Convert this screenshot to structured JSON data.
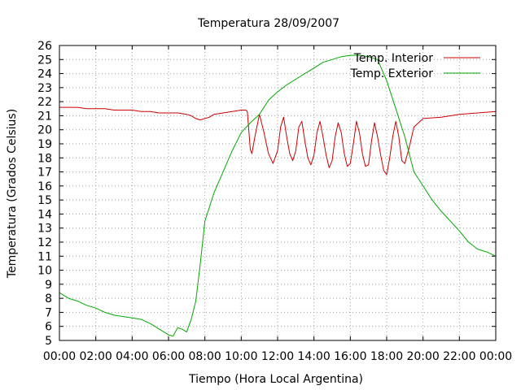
{
  "chart_data": {
    "type": "line",
    "title": "Temperatura 28/09/2007",
    "xlabel": "Tiempo (Hora Local Argentina)",
    "ylabel": "Temperatura (Grados Celsius)",
    "xlim": [
      "00:00",
      "24:00"
    ],
    "ylim": [
      5,
      26
    ],
    "x_ticks": [
      "00:00",
      "02:00",
      "04:00",
      "06:00",
      "08:00",
      "10:00",
      "12:00",
      "14:00",
      "16:00",
      "18:00",
      "20:00",
      "22:00",
      "00:00"
    ],
    "y_ticks": [
      5,
      6,
      7,
      8,
      9,
      10,
      11,
      12,
      13,
      14,
      15,
      16,
      17,
      18,
      19,
      20,
      21,
      22,
      23,
      24,
      25,
      26
    ],
    "grid": true,
    "legend_position": "top-right",
    "series": [
      {
        "name": "Temp. Interior",
        "color": "#cc0000",
        "x": [
          "00:00",
          "00:30",
          "01:00",
          "01:30",
          "02:00",
          "02:30",
          "03:00",
          "03:30",
          "04:00",
          "04:30",
          "05:00",
          "05:30",
          "06:00",
          "06:30",
          "07:00",
          "07:15",
          "07:30",
          "07:45",
          "08:00",
          "08:15",
          "08:30",
          "09:00",
          "09:30",
          "10:00",
          "10:15",
          "10:20",
          "10:30",
          "10:35",
          "10:45",
          "11:00",
          "11:15",
          "11:30",
          "11:45",
          "12:00",
          "12:10",
          "12:20",
          "12:30",
          "12:40",
          "12:50",
          "13:00",
          "13:10",
          "13:20",
          "13:30",
          "13:40",
          "13:50",
          "14:00",
          "14:10",
          "14:20",
          "14:30",
          "14:40",
          "14:50",
          "15:00",
          "15:10",
          "15:20",
          "15:30",
          "15:40",
          "15:50",
          "16:00",
          "16:10",
          "16:20",
          "16:30",
          "16:40",
          "16:50",
          "17:00",
          "17:10",
          "17:20",
          "17:30",
          "17:40",
          "17:50",
          "18:00",
          "18:10",
          "18:20",
          "18:30",
          "18:40",
          "18:50",
          "19:00",
          "19:15",
          "19:30",
          "20:00",
          "21:00",
          "22:00",
          "23:00",
          "24:00"
        ],
        "y": [
          21.6,
          21.6,
          21.6,
          21.5,
          21.5,
          21.5,
          21.4,
          21.4,
          21.4,
          21.3,
          21.3,
          21.2,
          21.2,
          21.2,
          21.1,
          21.0,
          20.8,
          20.7,
          20.8,
          20.9,
          21.1,
          21.2,
          21.3,
          21.4,
          21.4,
          21.3,
          18.6,
          18.3,
          19.5,
          21.1,
          19.8,
          18.3,
          17.6,
          18.5,
          20.2,
          20.9,
          19.5,
          18.3,
          17.8,
          18.5,
          20.2,
          20.6,
          19.2,
          18.0,
          17.5,
          18.2,
          19.8,
          20.6,
          19.5,
          18.2,
          17.3,
          17.8,
          19.5,
          20.5,
          19.8,
          18.3,
          17.4,
          17.6,
          19.0,
          20.6,
          19.8,
          18.3,
          17.4,
          17.5,
          19.2,
          20.5,
          19.5,
          18.2,
          17.1,
          16.8,
          18.0,
          19.5,
          20.6,
          19.5,
          17.8,
          17.6,
          18.8,
          20.2,
          20.8,
          20.9,
          21.1,
          21.2,
          21.3
        ]
      },
      {
        "name": "Temp. Exterior",
        "color": "#00aa00",
        "x": [
          "00:00",
          "00:30",
          "01:00",
          "01:30",
          "02:00",
          "02:30",
          "03:00",
          "03:30",
          "04:00",
          "04:30",
          "05:00",
          "05:30",
          "06:00",
          "06:15",
          "06:30",
          "06:45",
          "07:00",
          "07:15",
          "07:30",
          "07:45",
          "08:00",
          "08:15",
          "08:30",
          "09:00",
          "09:30",
          "10:00",
          "10:30",
          "11:00",
          "11:30",
          "12:00",
          "12:30",
          "13:00",
          "13:30",
          "14:00",
          "14:30",
          "15:00",
          "15:30",
          "16:00",
          "16:30",
          "17:00",
          "17:30",
          "18:00",
          "18:30",
          "19:00",
          "19:30",
          "20:00",
          "20:30",
          "21:00",
          "21:30",
          "22:00",
          "22:30",
          "23:00",
          "23:30",
          "24:00"
        ],
        "y": [
          8.4,
          8.0,
          7.8,
          7.5,
          7.3,
          7.0,
          6.8,
          6.7,
          6.6,
          6.5,
          6.2,
          5.8,
          5.4,
          5.3,
          5.9,
          5.8,
          5.6,
          6.5,
          7.8,
          10.5,
          13.5,
          14.5,
          15.5,
          17.0,
          18.5,
          19.8,
          20.5,
          21.1,
          22.1,
          22.7,
          23.2,
          23.6,
          24.0,
          24.4,
          24.8,
          25.0,
          25.2,
          25.3,
          25.3,
          25.2,
          25.0,
          23.5,
          21.5,
          19.5,
          17.0,
          16.0,
          15.0,
          14.2,
          13.5,
          12.8,
          12.0,
          11.5,
          11.3,
          11.0
        ]
      }
    ]
  }
}
